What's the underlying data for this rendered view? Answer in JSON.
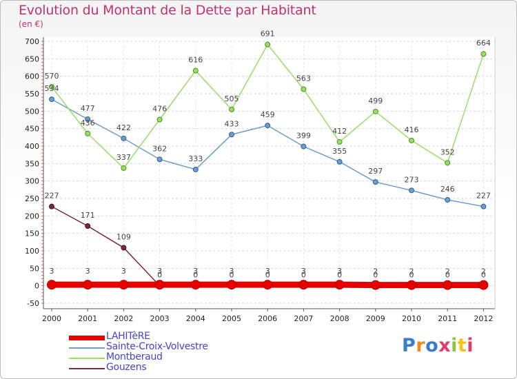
{
  "header": {
    "title": "Evolution du Montant de la Dette par Habitant",
    "subtitle": "(en €)"
  },
  "logo_text": "Proxiti",
  "chart_data": {
    "type": "line",
    "title": "Evolution du Montant de la Dette par Habitant",
    "subtitle": "(en €)",
    "xlabel": "",
    "ylabel": "",
    "x": [
      "2000",
      "2001",
      "2002",
      "2003",
      "2004",
      "2005",
      "2006",
      "2007",
      "2008",
      "2009",
      "2010",
      "2011",
      "2012"
    ],
    "y_ticks": [
      -50,
      0,
      50,
      100,
      150,
      200,
      250,
      300,
      350,
      400,
      450,
      500,
      550,
      600,
      650,
      700
    ],
    "ylim": [
      -50,
      700
    ],
    "grid": "horizontal dashed",
    "legend_position": "bottom-left",
    "series": [
      {
        "name": "LAHITèRE",
        "color": "#e60000",
        "values": [
          3,
          3,
          3,
          3,
          3,
          3,
          3,
          3,
          3,
          2,
          2,
          2,
          2
        ],
        "labels": [
          "3",
          "3",
          "3",
          "3",
          "3",
          "3",
          "3",
          "3",
          "3",
          "2",
          "2",
          "2",
          "2"
        ]
      },
      {
        "name": "Sainte-Croix-Volvestre",
        "color": "#6c9dcc",
        "values": [
          534,
          477,
          422,
          362,
          333,
          433,
          459,
          399,
          355,
          297,
          273,
          246,
          227
        ],
        "labels": [
          "534",
          "477",
          "422",
          "362",
          "333",
          "433",
          "459",
          "399",
          "355",
          "297",
          "273",
          "246",
          "227"
        ]
      },
      {
        "name": "Montberaud",
        "color": "#99dd66",
        "values": [
          570,
          436,
          337,
          476,
          616,
          505,
          691,
          563,
          412,
          499,
          416,
          352,
          664
        ],
        "labels": [
          "570",
          "436",
          "337",
          "476",
          "616",
          "505",
          "691",
          "563",
          "412",
          "499",
          "416",
          "352",
          "664"
        ]
      },
      {
        "name": "Gouzens",
        "color": "#7a2a35",
        "values": [
          227,
          171,
          109,
          0,
          0,
          0,
          0,
          0,
          0,
          0,
          0,
          0,
          0
        ],
        "labels": [
          "227",
          "171",
          "109",
          "0",
          "0",
          "0",
          "0",
          "0",
          "0",
          "0",
          "0",
          "0",
          "0"
        ]
      }
    ]
  }
}
